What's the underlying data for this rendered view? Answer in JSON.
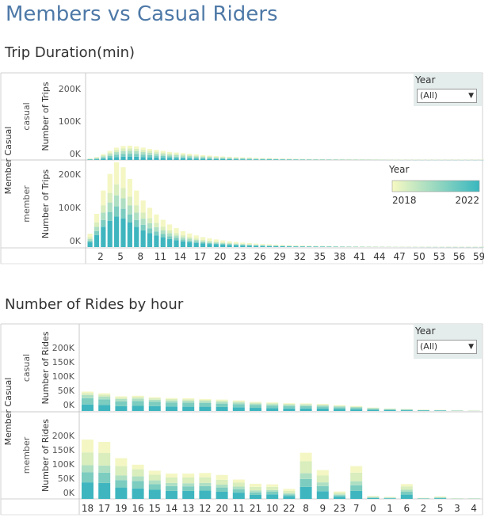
{
  "title": "Members vs Casual Riders",
  "section1": {
    "title": "Trip Duration(min)"
  },
  "section2": {
    "title": "Number of Rides by hour"
  },
  "filters": {
    "label": "Year",
    "value": "(All)"
  },
  "legend": {
    "title": "Year",
    "min_label": "2018",
    "max_label": "2022",
    "colors": [
      "#f7f9c2",
      "#39b7bf"
    ]
  },
  "shared_labels": {
    "facet_header": "Member Casual",
    "casual": "casual",
    "member": "member"
  },
  "year_colors": {
    "2018": "#f4f7c3",
    "2019": "#d9edbd",
    "2020": "#aedfc3",
    "2021": "#7cccc0",
    "2022": "#3fb6bf"
  },
  "chart_data": [
    {
      "type": "bar",
      "stacked": true,
      "title": "Trip Duration(min)",
      "xlabel": "",
      "ylabel": "Number of Trips",
      "ylim": [
        0,
        250000
      ],
      "yticks": [
        0,
        100000,
        200000
      ],
      "ytick_labels": [
        "0K",
        "100K",
        "200K"
      ],
      "x": [
        1,
        2,
        3,
        4,
        5,
        6,
        7,
        8,
        9,
        10,
        11,
        12,
        13,
        14,
        15,
        16,
        17,
        18,
        19,
        20,
        21,
        22,
        23,
        24,
        25,
        26,
        27,
        28,
        29,
        30,
        31,
        32,
        33,
        34,
        35,
        36,
        37,
        38,
        39,
        40,
        41,
        42,
        43,
        44,
        45,
        46,
        47,
        48,
        49,
        50,
        51,
        52,
        53,
        54,
        55,
        56,
        57,
        58,
        59,
        60
      ],
      "xtick_labels": [
        "2",
        "5",
        "8",
        "11",
        "14",
        "17",
        "20",
        "23",
        "26",
        "29",
        "32",
        "35",
        "38",
        "41",
        "44",
        "47",
        "50",
        "53",
        "56",
        "59"
      ],
      "panels": [
        {
          "name": "casual",
          "totals": [
            5000,
            9000,
            18000,
            28000,
            38000,
            43000,
            44000,
            42000,
            38000,
            34000,
            31000,
            28000,
            25000,
            23000,
            21000,
            19000,
            17000,
            15000,
            13500,
            12000,
            11000,
            10000,
            9000,
            8200,
            7500,
            6800,
            6200,
            5600,
            5100,
            4700,
            4300,
            3900,
            3600,
            3300,
            3000,
            2800,
            2600,
            2400,
            2200,
            2000,
            1900,
            1800,
            1700,
            1600,
            1500,
            1400,
            1300,
            1200,
            1100,
            1050,
            1000,
            950,
            900,
            850,
            800,
            760,
            720,
            690,
            660,
            630
          ],
          "shares": [
            0.18,
            0.18,
            0.2,
            0.2,
            0.24
          ]
        },
        {
          "name": "member",
          "totals": [
            40000,
            100000,
            170000,
            220000,
            255000,
            240000,
            205000,
            170000,
            140000,
            118000,
            98000,
            82000,
            68000,
            57000,
            48000,
            41000,
            35000,
            30000,
            26000,
            23000,
            20000,
            17500,
            15500,
            13500,
            12000,
            10500,
            9300,
            8300,
            7400,
            6600,
            5900,
            5300,
            4800,
            4300,
            3900,
            3500,
            3200,
            2900,
            2600,
            2400,
            2200,
            2000,
            1800,
            1650,
            1500,
            1380,
            1260,
            1150,
            1050,
            960,
            880,
            810,
            750,
            700,
            650,
            610,
            570,
            540,
            510,
            480
          ],
          "shares": [
            0.26,
            0.13,
            0.13,
            0.12,
            0.36
          ]
        }
      ]
    },
    {
      "type": "bar",
      "stacked": true,
      "title": "Number of Rides by hour",
      "xlabel": "",
      "ylabel": "Number of Rides",
      "ylim": [
        0,
        220000
      ],
      "yticks": [
        0,
        50000,
        100000,
        150000,
        200000
      ],
      "ytick_labels": [
        "0K",
        "50K",
        "100K",
        "150K",
        "200K"
      ],
      "categories": [
        "18",
        "17",
        "19",
        "16",
        "15",
        "14",
        "13",
        "12",
        "20",
        "11",
        "21",
        "10",
        "22",
        "8",
        "9",
        "23",
        "7",
        "0",
        "1",
        "6",
        "2",
        "5",
        "3",
        "4"
      ],
      "panels": [
        {
          "name": "casual",
          "series": [
            {
              "name": "2022",
              "values": [
                23000,
                21000,
                17000,
                18000,
                17000,
                16000,
                15000,
                15000,
                14000,
                13000,
                11000,
                10000,
                9000,
                9000,
                8500,
                7000,
                6000,
                4000,
                3000,
                2500,
                1500,
                1300,
                700,
                500
              ]
            },
            {
              "name": "2021",
              "values": [
                22000,
                20000,
                17000,
                17000,
                15000,
                14000,
                14000,
                13000,
                12000,
                11000,
                10000,
                9000,
                8500,
                8000,
                7500,
                6000,
                5000,
                3500,
                2500,
                2000,
                1300,
                1000,
                600,
                400
              ]
            },
            {
              "name": "2020",
              "values": [
                11000,
                10000,
                8000,
                8500,
                7500,
                7000,
                7000,
                6500,
                6500,
                6000,
                5000,
                5000,
                4500,
                4500,
                4000,
                3500,
                3000,
                2000,
                1500,
                1200,
                800,
                700,
                400,
                300
              ]
            },
            {
              "name": "2019",
              "values": [
                7000,
                6500,
                5500,
                6000,
                5500,
                5000,
                5000,
                4500,
                4500,
                4000,
                3500,
                3500,
                3000,
                3000,
                3000,
                2500,
                2000,
                1500,
                1000,
                800,
                600,
                500,
                300,
                200
              ]
            },
            {
              "name": "2018",
              "values": [
                5000,
                4500,
                4000,
                4000,
                3500,
                3500,
                3500,
                3000,
                3000,
                3000,
                2500,
                2500,
                2000,
                2000,
                2000,
                1500,
                1500,
                1000,
                700,
                600,
                400,
                400,
                200,
                200
              ]
            }
          ]
        },
        {
          "name": "member",
          "series": [
            {
              "name": "2022",
              "values": [
                58000,
                56000,
                40000,
                37000,
                32000,
                28000,
                28000,
                29000,
                25000,
                22000,
                14000,
                16000,
                10000,
                42000,
                27000,
                8000,
                28000,
                3000,
                2000,
                15000,
                1000,
                2500,
                500,
                600
              ]
            },
            {
              "name": "2021",
              "values": [
                35000,
                36000,
                26000,
                26000,
                20000,
                17000,
                16000,
                16000,
                15000,
                12000,
                9000,
                9000,
                6000,
                28000,
                18000,
                5000,
                20000,
                2000,
                1500,
                10000,
                800,
                1500,
                400,
                400
              ]
            },
            {
              "name": "2020",
              "values": [
                25000,
                25000,
                16000,
                16000,
                13000,
                11000,
                11000,
                11000,
                10000,
                9000,
                7000,
                6000,
                4000,
                20000,
                13000,
                3000,
                14000,
                1500,
                1000,
                7000,
                600,
                1000,
                300,
                300
              ]
            },
            {
              "name": "2019",
              "values": [
                45000,
                44000,
                33000,
                25000,
                20000,
                19000,
                20000,
                20000,
                17000,
                14000,
                12000,
                11000,
                8000,
                42000,
                24000,
                6000,
                30000,
                2500,
                1800,
                12000,
                1000,
                2000,
                500,
                500
              ]
            },
            {
              "name": "2018",
              "values": [
                45000,
                39000,
                28000,
                16000,
                14000,
                14000,
                14000,
                15000,
                17000,
                11000,
                11000,
                9000,
                7000,
                30000,
                19000,
                4000,
                23000,
                1500,
                1200,
                8000,
                700,
                1500,
                400,
                400
              ]
            }
          ]
        }
      ]
    }
  ]
}
